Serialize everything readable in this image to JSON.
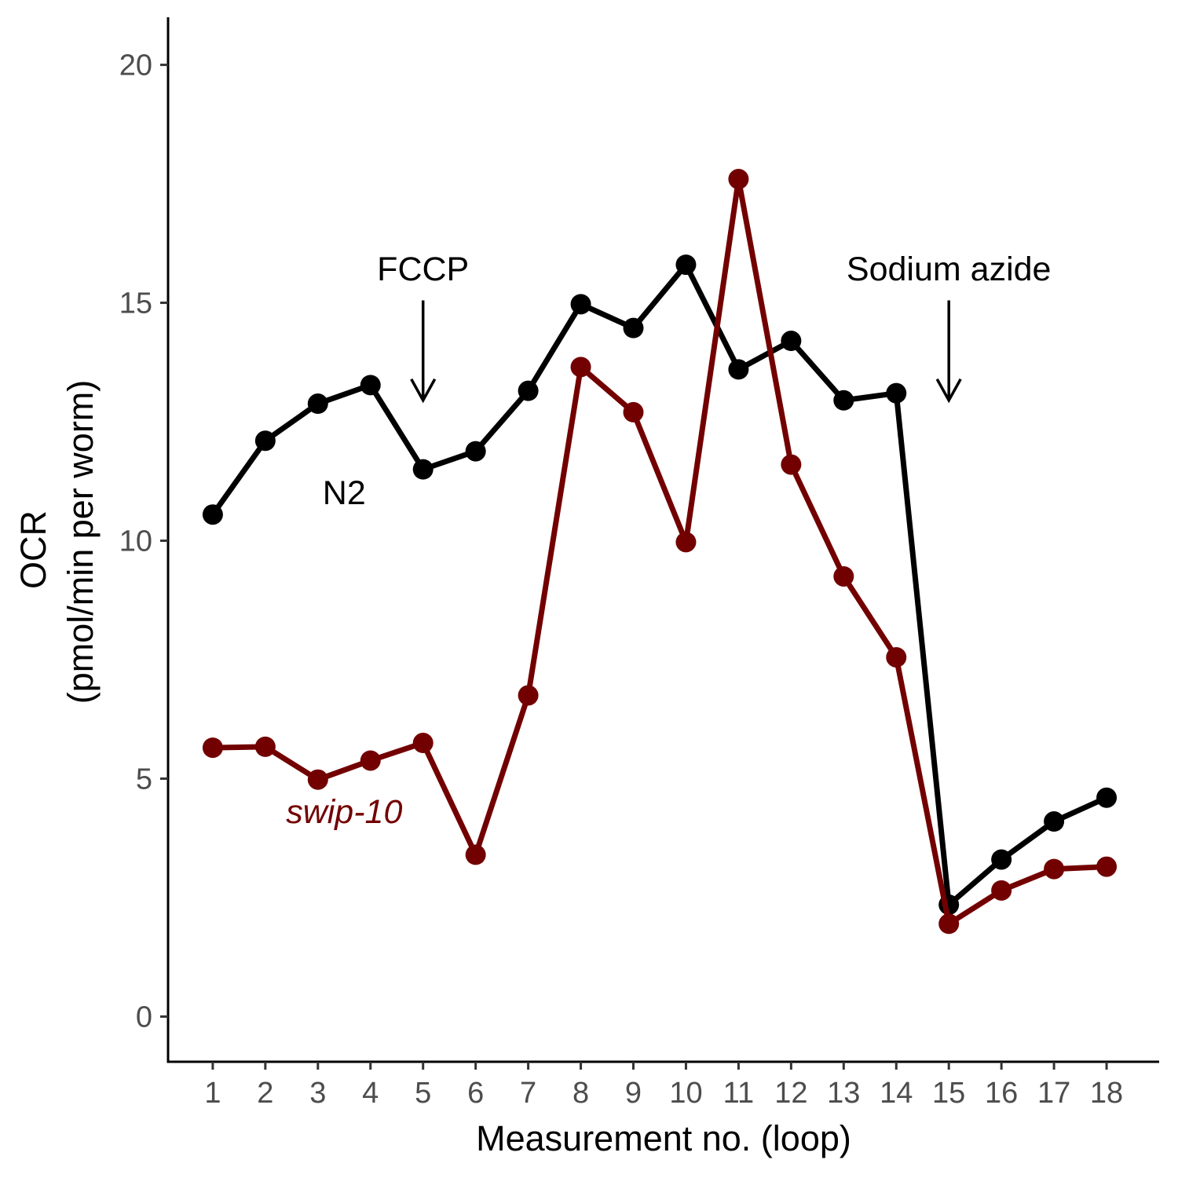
{
  "chart_data": {
    "type": "line",
    "title": "",
    "xlabel": "Measurement no. (loop)",
    "ylabel_line1": "OCR",
    "ylabel_line2": "(pmol/min per worm)",
    "x": [
      1,
      2,
      3,
      4,
      5,
      6,
      7,
      8,
      9,
      10,
      11,
      12,
      13,
      14,
      15,
      16,
      17,
      18
    ],
    "xticks": [
      "1",
      "2",
      "3",
      "4",
      "5",
      "6",
      "7",
      "8",
      "9",
      "10",
      "11",
      "12",
      "13",
      "14",
      "15",
      "16",
      "17",
      "18"
    ],
    "yticks": [
      "0",
      "5",
      "10",
      "15",
      "20"
    ],
    "xlim": [
      0.15,
      19.0
    ],
    "ylim": [
      -0.95,
      21.0
    ],
    "grid": false,
    "legend": "none",
    "series": [
      {
        "name": "N2",
        "italic": false,
        "color": "#000000",
        "values": [
          10.55,
          12.1,
          12.88,
          13.27,
          11.5,
          11.88,
          13.15,
          14.97,
          14.47,
          15.8,
          13.6,
          14.2,
          12.95,
          13.1,
          2.35,
          3.3,
          4.1,
          4.6
        ]
      },
      {
        "name": "swip-10",
        "italic": true,
        "color": "#730000",
        "values": [
          5.65,
          5.67,
          4.98,
          5.38,
          5.75,
          3.4,
          6.75,
          13.65,
          12.7,
          9.97,
          17.6,
          11.6,
          9.25,
          7.55,
          1.95,
          2.65,
          3.1,
          3.15
        ]
      }
    ],
    "annotations": [
      {
        "text": "FCCP",
        "x": 5,
        "y": 15.7,
        "arrow_from": 15.05,
        "arrow_to": 12.95
      },
      {
        "text": "Sodium azide",
        "x": 15,
        "y": 15.7,
        "arrow_from": 15.05,
        "arrow_to": 12.95
      }
    ],
    "series_labels": [
      {
        "text": "N2",
        "x": 3.5,
        "y": 11.0
      },
      {
        "text": "swip-10",
        "x": 3.5,
        "y": 4.3
      }
    ]
  }
}
